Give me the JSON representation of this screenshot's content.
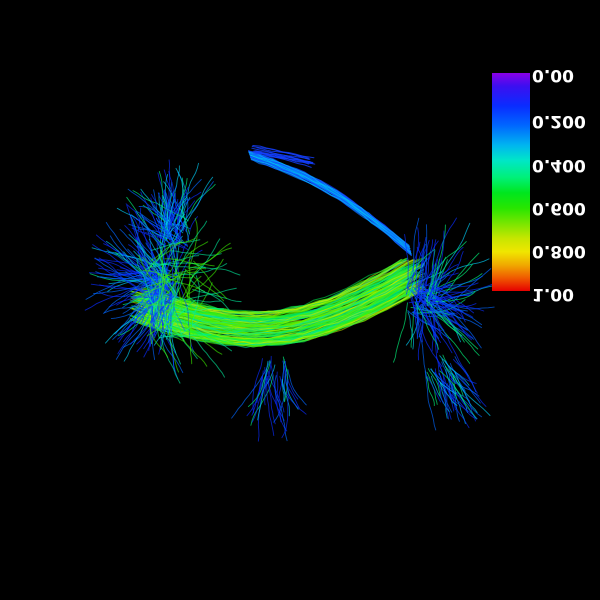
{
  "colorbar": {
    "ticks": [
      "0.00",
      "0.200",
      "0.400",
      "0.600",
      "0.800",
      "1.00"
    ],
    "colors": {
      "top": "#8a00e6",
      "blue": "#0a2cff",
      "cyan": "#00e6c8",
      "green": "#00e61e",
      "yellow": "#f0e600",
      "bottom": "#e60000"
    }
  },
  "scene": {
    "background": "#000000",
    "subject": "fiber-tractography"
  }
}
